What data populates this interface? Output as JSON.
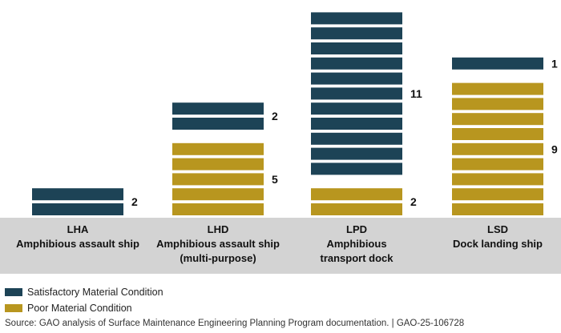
{
  "chart_data": {
    "type": "bar",
    "stacked": true,
    "unit_marks": true,
    "categories": [
      {
        "code": "LHA",
        "name_lines": [
          "Amphibious assault ship"
        ]
      },
      {
        "code": "LHD",
        "name_lines": [
          "Amphibious assault ship",
          "(multi-purpose)"
        ]
      },
      {
        "code": "LPD",
        "name_lines": [
          "Amphibious",
          "transport dock"
        ]
      },
      {
        "code": "LSD",
        "name_lines": [
          "Dock landing ship"
        ]
      }
    ],
    "series": [
      {
        "name": "Poor Material Condition",
        "color": "#b8961f",
        "values": [
          0,
          5,
          2,
          9
        ],
        "labels": [
          "",
          "5",
          "2",
          "9"
        ]
      },
      {
        "name": "Satisfactory Material Condition",
        "color": "#1d4356",
        "values": [
          2,
          2,
          11,
          1
        ],
        "labels": [
          "2",
          "2",
          "11",
          "1"
        ]
      }
    ],
    "legend": [
      "Satisfactory Material Condition",
      "Poor Material Condition"
    ],
    "legend_position": "bottom-left",
    "source": "Source: GAO analysis of Surface Maintenance Engineering Planning Program documentation.  |  GAO-25-106728"
  }
}
